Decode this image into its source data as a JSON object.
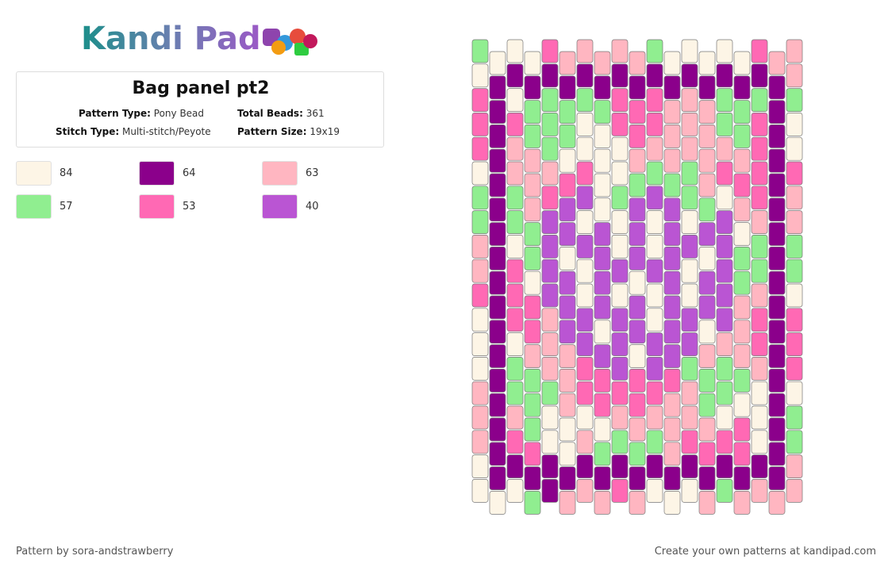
{
  "header": {
    "logo": "Kandi Pad"
  },
  "pattern": {
    "title": "Bag panel pt2",
    "info": [
      {
        "label": "Pattern Type:",
        "value": "Pony Bead"
      },
      {
        "label": "Total Beads:",
        "value": "361"
      },
      {
        "label": "Stitch Type:",
        "value": "Multi-stitch/Peyote"
      },
      {
        "label": "Pattern Size:",
        "value": "19x19"
      }
    ]
  },
  "legend": [
    {
      "color": "#fdf5e6",
      "count": 84
    },
    {
      "color": "#8b008b",
      "count": 64
    },
    {
      "color": "#ffb6c1",
      "count": 63
    },
    {
      "color": "#90ee90",
      "count": 57
    },
    {
      "color": "#ff69b4",
      "count": 53
    },
    {
      "color": "#ba55d3",
      "count": 40
    }
  ],
  "footer": {
    "credit": "Pattern by sora-andstrawberry",
    "promo": "Create your own patterns at kandipad.com"
  }
}
